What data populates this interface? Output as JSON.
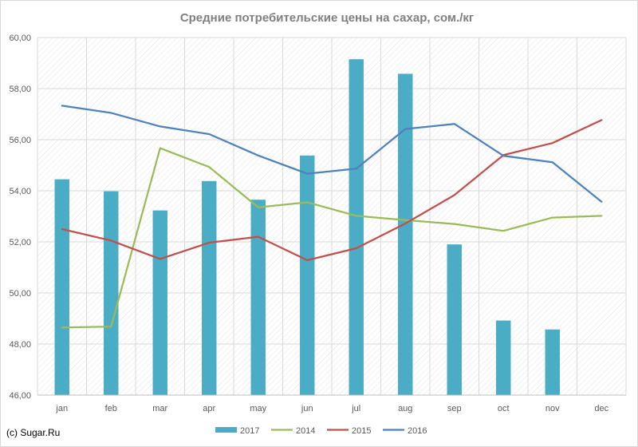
{
  "chart_data": {
    "type": "bar",
    "title": "Средние потребительские цены на сахар, сом./кг",
    "categories": [
      "jan",
      "feb",
      "mar",
      "apr",
      "may",
      "jun",
      "jul",
      "aug",
      "sep",
      "oct",
      "nov",
      "dec"
    ],
    "ylim": [
      46,
      60
    ],
    "yticks": [
      "46,00",
      "48,00",
      "50,00",
      "52,00",
      "54,00",
      "56,00",
      "58,00",
      "60,00"
    ],
    "ytick_values": [
      46,
      48,
      50,
      52,
      54,
      56,
      58,
      60
    ],
    "grid": true,
    "legend_position": "bottom",
    "bar_series": [
      {
        "name": "2017",
        "color": "#4bacc6",
        "values": [
          54.45,
          53.98,
          53.23,
          54.38,
          53.65,
          55.38,
          59.15,
          58.58,
          51.9,
          48.92,
          48.57,
          null
        ]
      }
    ],
    "line_series": [
      {
        "name": "2014",
        "color": "#9bbb59",
        "values": [
          48.65,
          48.68,
          55.67,
          54.93,
          53.35,
          53.55,
          53.02,
          52.85,
          52.7,
          52.43,
          52.95,
          53.02
        ]
      },
      {
        "name": "2015",
        "color": "#c0504d",
        "values": [
          52.5,
          52.05,
          51.33,
          51.97,
          52.2,
          51.28,
          51.75,
          52.72,
          53.83,
          55.4,
          55.87,
          56.77
        ]
      },
      {
        "name": "2016",
        "color": "#4f81bd",
        "values": [
          57.33,
          57.05,
          56.52,
          56.22,
          55.38,
          54.67,
          54.87,
          56.42,
          56.62,
          55.37,
          55.12,
          53.57
        ]
      }
    ],
    "legend": [
      "2017",
      "2014",
      "2015",
      "2016"
    ]
  },
  "credit": "(c) Sugar.Ru"
}
